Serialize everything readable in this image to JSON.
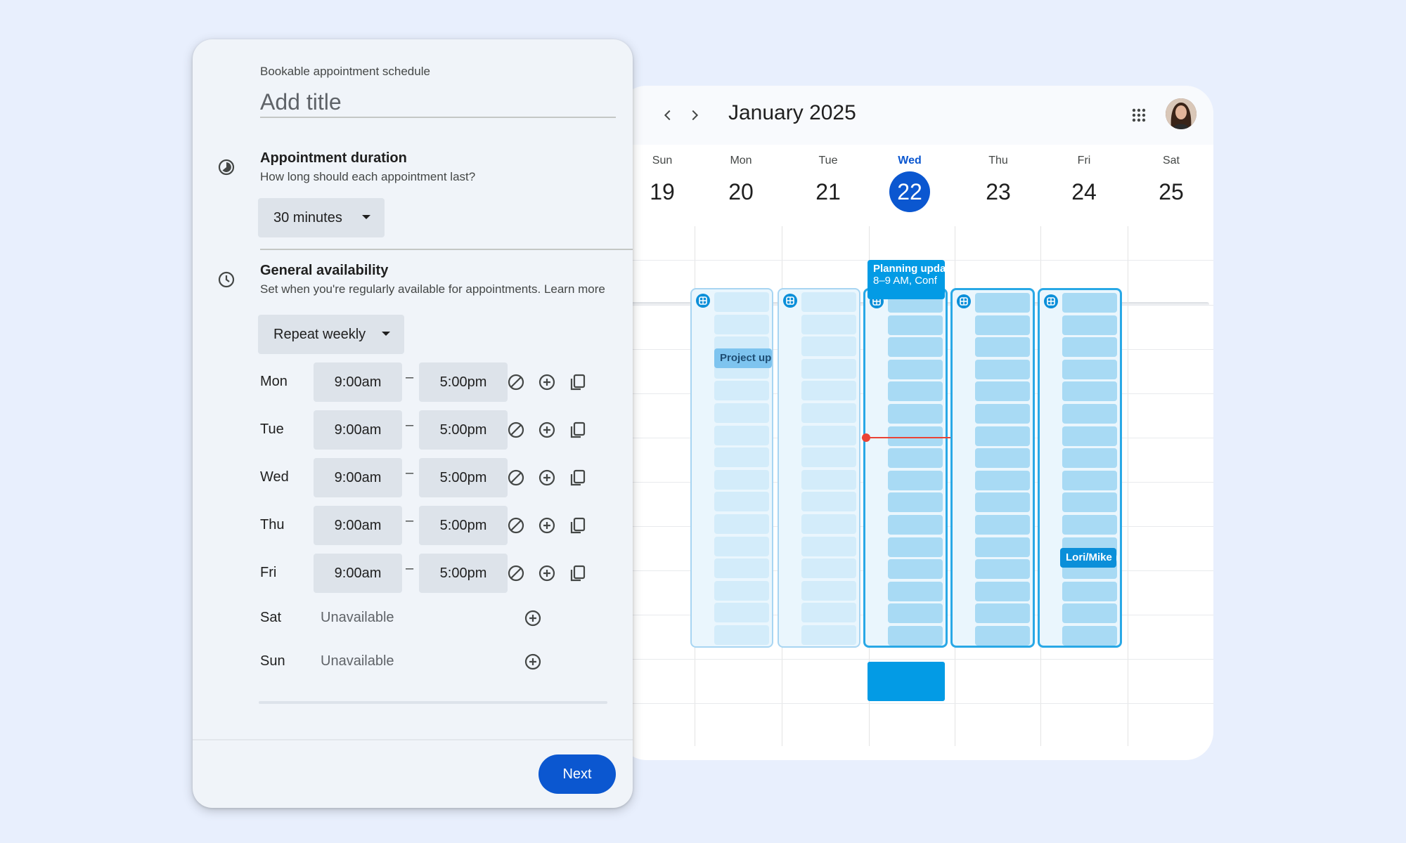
{
  "calendar": {
    "month_title": "January 2025",
    "nav": {
      "prev_icon": "chevron-left-icon",
      "next_icon": "chevron-right-icon"
    },
    "apps_icon": "apps-grid-icon",
    "days": [
      {
        "name": "Sun",
        "num": "19"
      },
      {
        "name": "Mon",
        "num": "20"
      },
      {
        "name": "Tue",
        "num": "21"
      },
      {
        "name": "Wed",
        "num": "22",
        "today": true
      },
      {
        "name": "Thu",
        "num": "23"
      },
      {
        "name": "Fri",
        "num": "24"
      },
      {
        "name": "Sat",
        "num": "25"
      }
    ],
    "events": {
      "planning_title": "Planning upda",
      "planning_detail": "8–9 AM, Conf",
      "project": "Project up",
      "lori": "Lori/Mike"
    },
    "colors": {
      "today": "#0b57d0",
      "event": "#039be5",
      "now_line": "#ea4335",
      "slot": "#a8daf4"
    }
  },
  "dialog": {
    "schedule_kind": "Bookable appointment schedule",
    "title_placeholder": "Add title",
    "duration": {
      "title": "Appointment duration",
      "subtitle": "How long should each appointment last?",
      "value": "30 minutes",
      "icon": "duration-icon"
    },
    "availability": {
      "title": "General availability",
      "subtitle": "Set when you're regularly available for appointments.",
      "learn_more": "Learn more",
      "repeat": "Repeat weekly",
      "icon": "clock-icon",
      "dash": "–",
      "rows": [
        {
          "day": "Mon",
          "start": "9:00am",
          "end": "5:00pm"
        },
        {
          "day": "Tue",
          "start": "9:00am",
          "end": "5:00pm"
        },
        {
          "day": "Wed",
          "start": "9:00am",
          "end": "5:00pm"
        },
        {
          "day": "Thu",
          "start": "9:00am",
          "end": "5:00pm"
        },
        {
          "day": "Fri",
          "start": "9:00am",
          "end": "5:00pm"
        }
      ],
      "unavailable_rows": [
        {
          "day": "Sat",
          "text": "Unavailable"
        },
        {
          "day": "Sun",
          "text": "Unavailable"
        }
      ]
    },
    "next_label": "Next",
    "colors": {
      "primary": "#0b57d0",
      "field": "#dde3ea",
      "surface": "#f0f4f9"
    }
  }
}
